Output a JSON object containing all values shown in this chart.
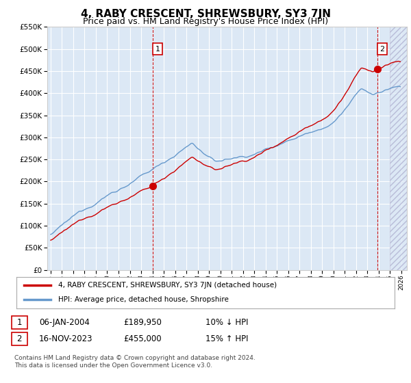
{
  "title": "4, RABY CRESCENT, SHREWSBURY, SY3 7JN",
  "subtitle": "Price paid vs. HM Land Registry's House Price Index (HPI)",
  "title_fontsize": 11,
  "subtitle_fontsize": 9,
  "bg_color": "#ffffff",
  "plot_bg_color": "#dce8f5",
  "grid_color": "#ffffff",
  "sale1_date_num": 2004.03,
  "sale1_price": 189950,
  "sale2_date_num": 2023.88,
  "sale2_price": 455000,
  "ylim_min": 0,
  "ylim_max": 550000,
  "ytick_step": 50000,
  "xlim_min": 1994.7,
  "xlim_max": 2026.5,
  "legend_entry1": "4, RABY CRESCENT, SHREWSBURY, SY3 7JN (detached house)",
  "legend_entry2": "HPI: Average price, detached house, Shropshire",
  "table_row1_num": "1",
  "table_row1_date": "06-JAN-2004",
  "table_row1_price": "£189,950",
  "table_row1_hpi": "10% ↓ HPI",
  "table_row2_num": "2",
  "table_row2_date": "16-NOV-2023",
  "table_row2_price": "£455,000",
  "table_row2_hpi": "15% ↑ HPI",
  "footnote": "Contains HM Land Registry data © Crown copyright and database right 2024.\nThis data is licensed under the Open Government Licence v3.0.",
  "hpi_line_color": "#6699cc",
  "price_line_color": "#cc0000",
  "vline_color": "#cc0000",
  "marker_color": "#cc0000",
  "hatch_color": "#aaaacc"
}
